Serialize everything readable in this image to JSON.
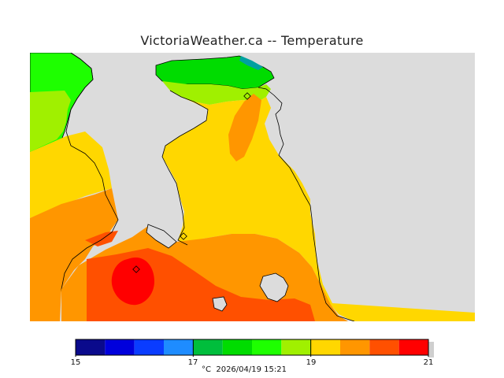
{
  "title": "VictoriaWeather.ca -- Temperature",
  "legend": {
    "unit": "°C",
    "min": 15,
    "max": 21,
    "tick_labels": [
      "15",
      "17",
      "19",
      "21"
    ],
    "colors": [
      "#0a0a8c",
      "#0000dc",
      "#0a3cff",
      "#1e8cff",
      "#00a0a0",
      "#00be3c",
      "#00dc00",
      "#1eff00",
      "#a0f000",
      "#ffd700",
      "#ff9600",
      "#ff5000",
      "#ff0000"
    ]
  },
  "footer": {
    "unit": "°C",
    "timestamp": "2026/04/19 15:21"
  },
  "map": {
    "land_color": "#dcdcdc",
    "zone_colors": {
      "t17_18": "#00dc00",
      "t18": "#1eff00",
      "t18_19": "#a0f000",
      "t19_20": "#ffd700",
      "t20": "#ff9600",
      "t20_21": "#ff5000",
      "t21": "#ff0000",
      "teal": "#00a0a0"
    }
  }
}
